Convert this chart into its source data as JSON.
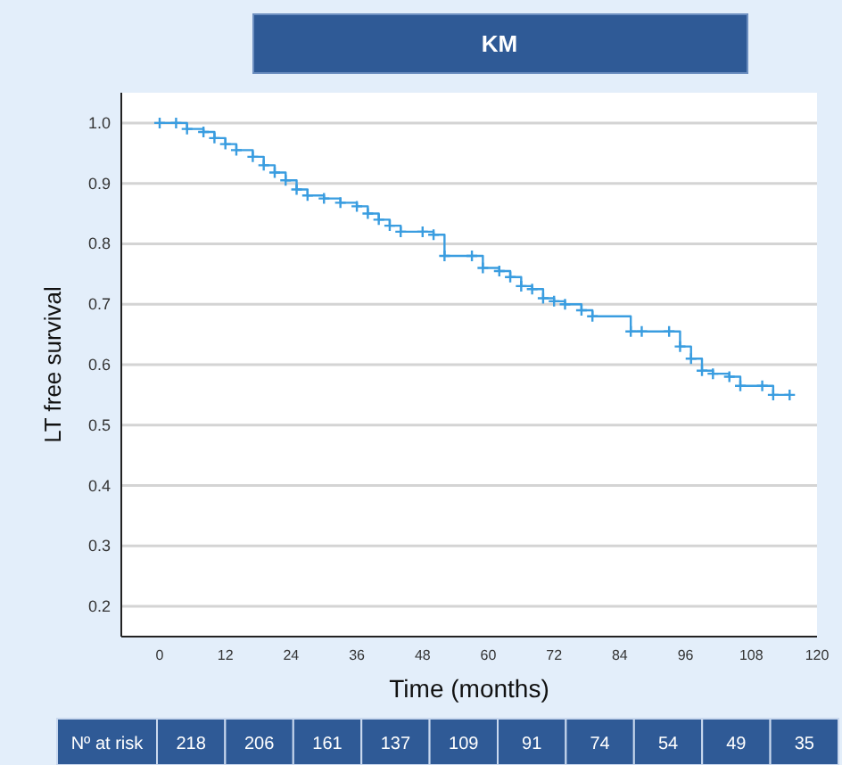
{
  "chart_data": {
    "type": "step",
    "title": "KM",
    "xlabel": "Time (months)",
    "ylabel": "LT free survival",
    "xlim": [
      -7,
      120
    ],
    "xticks": [
      0,
      12,
      24,
      36,
      48,
      60,
      72,
      84,
      96,
      108,
      120
    ],
    "ylim": [
      0.15,
      1.05
    ],
    "yticks": [
      {
        "value": 0.2,
        "label": "0.2"
      },
      {
        "value": 0.3,
        "label": "0.3"
      },
      {
        "value": 0.4,
        "label": "0.4"
      },
      {
        "value": 0.5,
        "label": "0.5"
      },
      {
        "value": 0.6,
        "label": "0.6"
      },
      {
        "value": 0.7,
        "label": "0.7"
      },
      {
        "value": 0.8,
        "label": "0.8"
      },
      {
        "value": 0.9,
        "label": "0.9"
      },
      {
        "value": 1.0,
        "label": "1.0"
      }
    ],
    "grid": "y",
    "marker": "cross",
    "line_style": "solid",
    "series": [
      {
        "color": "#3a9de0",
        "x": [
          0,
          3,
          5,
          8,
          10,
          12,
          14,
          17,
          19,
          21,
          23,
          25,
          27,
          30,
          33,
          36,
          38,
          40,
          42,
          44,
          48,
          50,
          52,
          57,
          59,
          62,
          64,
          66,
          68,
          70,
          72,
          74,
          77,
          79,
          86,
          88,
          93,
          95,
          97,
          99,
          101,
          104,
          106,
          110,
          112,
          115
        ],
        "values": [
          1.0,
          1.0,
          0.99,
          0.985,
          0.975,
          0.965,
          0.955,
          0.944,
          0.93,
          0.918,
          0.905,
          0.89,
          0.88,
          0.875,
          0.868,
          0.862,
          0.85,
          0.84,
          0.83,
          0.82,
          0.82,
          0.815,
          0.78,
          0.78,
          0.76,
          0.755,
          0.745,
          0.73,
          0.725,
          0.71,
          0.705,
          0.7,
          0.69,
          0.68,
          0.655,
          0.655,
          0.655,
          0.63,
          0.61,
          0.59,
          0.585,
          0.58,
          0.565,
          0.565,
          0.55,
          0.55
        ]
      }
    ],
    "annotations": [
      "Nº at risk",
      "218",
      "206",
      "161",
      "137",
      "109",
      "91",
      "74",
      "54",
      "49",
      "35"
    ]
  }
}
